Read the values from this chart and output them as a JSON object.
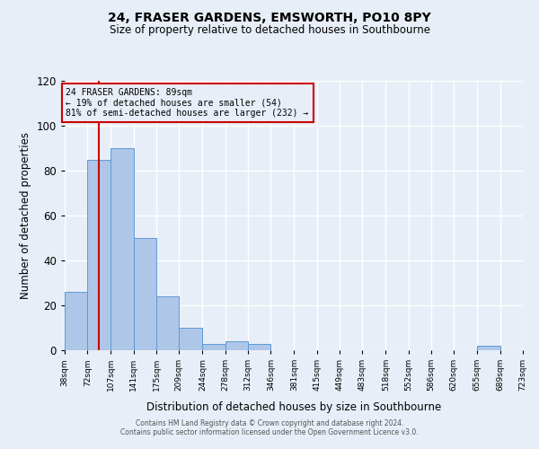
{
  "title": "24, FRASER GARDENS, EMSWORTH, PO10 8PY",
  "subtitle": "Size of property relative to detached houses in Southbourne",
  "xlabel": "Distribution of detached houses by size in Southbourne",
  "ylabel": "Number of detached properties",
  "bin_edges": [
    38,
    72,
    107,
    141,
    175,
    209,
    244,
    278,
    312,
    346,
    381,
    415,
    449,
    483,
    518,
    552,
    586,
    620,
    655,
    689,
    723
  ],
  "bar_heights": [
    26,
    85,
    90,
    50,
    24,
    10,
    3,
    4,
    3,
    0,
    0,
    0,
    0,
    0,
    0,
    0,
    0,
    0,
    2,
    0
  ],
  "bar_color": "#aec6e8",
  "bar_edge_color": "#5b9bd5",
  "background_color": "#e8eef7",
  "grid_color": "#ffffff",
  "red_line_x": 89,
  "annotation_text_line1": "24 FRASER GARDENS: 89sqm",
  "annotation_text_line2": "← 19% of detached houses are smaller (54)",
  "annotation_text_line3": "81% of semi-detached houses are larger (232) →",
  "annotation_box_color": "#cc0000",
  "ylim": [
    0,
    120
  ],
  "yticks": [
    0,
    20,
    40,
    60,
    80,
    100,
    120
  ],
  "tick_labels": [
    "38sqm",
    "72sqm",
    "107sqm",
    "141sqm",
    "175sqm",
    "209sqm",
    "244sqm",
    "278sqm",
    "312sqm",
    "346sqm",
    "381sqm",
    "415sqm",
    "449sqm",
    "483sqm",
    "518sqm",
    "552sqm",
    "586sqm",
    "620sqm",
    "655sqm",
    "689sqm",
    "723sqm"
  ],
  "footer_line1": "Contains HM Land Registry data © Crown copyright and database right 2024.",
  "footer_line2": "Contains public sector information licensed under the Open Government Licence v3.0."
}
